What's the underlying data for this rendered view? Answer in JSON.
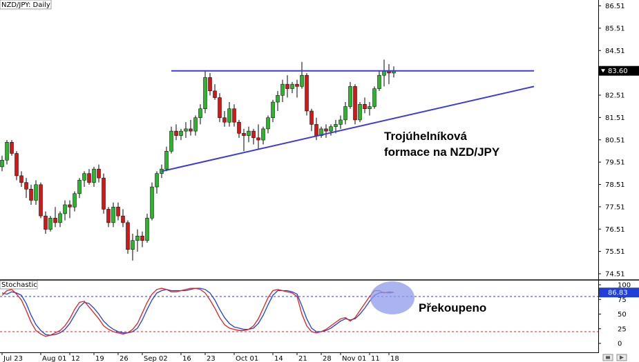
{
  "chart_data": [
    {
      "type": "candlestick",
      "title": "NZD/JPY: Daily",
      "ylim": [
        74.5,
        86.8
      ],
      "y_ticks": [
        "86.51",
        "85.51",
        "84.51",
        "83.51",
        "82.51",
        "81.51",
        "80.51",
        "79.51",
        "78.51",
        "77.51",
        "76.51",
        "75.51",
        "74.51"
      ],
      "current_price": "83.60",
      "x_ticks": [
        "Jul 23",
        "Aug 01",
        "12",
        "19",
        "26",
        "Sep 02",
        "16",
        "23",
        "Oct 01",
        "14",
        "21",
        "28",
        "Nov 01",
        "11",
        "18"
      ],
      "candles": [
        [
          79.3,
          79.8,
          79.1,
          79.6
        ],
        [
          79.6,
          80.5,
          79.4,
          80.4
        ],
        [
          80.4,
          80.5,
          79.8,
          79.9
        ],
        [
          79.9,
          80.0,
          78.7,
          78.9
        ],
        [
          78.9,
          79.1,
          78.4,
          78.6
        ],
        [
          78.6,
          78.8,
          77.9,
          78.3
        ],
        [
          78.3,
          78.5,
          77.6,
          77.8
        ],
        [
          77.8,
          78.7,
          77.6,
          78.5
        ],
        [
          78.5,
          78.6,
          77.0,
          77.1
        ],
        [
          77.1,
          77.3,
          76.3,
          76.5
        ],
        [
          76.5,
          77.1,
          76.4,
          77.0
        ],
        [
          77.0,
          77.5,
          76.6,
          76.8
        ],
        [
          76.8,
          77.3,
          76.6,
          77.2
        ],
        [
          77.2,
          77.8,
          76.9,
          77.6
        ],
        [
          77.6,
          77.8,
          77.0,
          77.5
        ],
        [
          77.5,
          78.2,
          77.3,
          78.1
        ],
        [
          78.1,
          78.8,
          77.9,
          78.7
        ],
        [
          78.7,
          79.1,
          78.4,
          79.0
        ],
        [
          79.0,
          79.2,
          78.5,
          78.6
        ],
        [
          78.6,
          79.3,
          78.4,
          79.2
        ],
        [
          79.2,
          79.4,
          78.6,
          78.8
        ],
        [
          78.8,
          79.0,
          77.2,
          77.4
        ],
        [
          77.4,
          77.5,
          76.6,
          76.8
        ],
        [
          76.8,
          77.7,
          76.6,
          77.5
        ],
        [
          77.5,
          77.7,
          76.9,
          77.1
        ],
        [
          77.1,
          77.4,
          76.6,
          76.8
        ],
        [
          76.8,
          76.9,
          75.4,
          75.6
        ],
        [
          75.6,
          76.3,
          75.1,
          76.0
        ],
        [
          76.0,
          76.5,
          75.5,
          76.2
        ],
        [
          76.2,
          76.4,
          75.7,
          76.0
        ],
        [
          76.0,
          77.2,
          75.9,
          77.0
        ],
        [
          77.0,
          78.6,
          76.9,
          78.4
        ],
        [
          78.4,
          79.1,
          78.1,
          79.0
        ],
        [
          79.0,
          79.4,
          78.8,
          79.2
        ],
        [
          79.2,
          80.2,
          79.1,
          80.0
        ],
        [
          80.0,
          81.1,
          79.9,
          80.9
        ],
        [
          80.9,
          81.2,
          80.5,
          80.7
        ],
        [
          80.7,
          81.0,
          80.5,
          80.9
        ],
        [
          80.9,
          81.3,
          80.6,
          81.0
        ],
        [
          81.0,
          81.4,
          80.7,
          80.9
        ],
        [
          80.9,
          81.6,
          80.7,
          81.5
        ],
        [
          81.5,
          82.1,
          81.2,
          81.9
        ],
        [
          81.9,
          83.6,
          81.7,
          83.3
        ],
        [
          83.3,
          83.5,
          82.5,
          82.7
        ],
        [
          82.7,
          83.0,
          82.3,
          82.4
        ],
        [
          82.4,
          82.6,
          81.3,
          81.5
        ],
        [
          81.5,
          81.8,
          81.1,
          81.3
        ],
        [
          81.3,
          82.2,
          81.1,
          81.9
        ],
        [
          81.9,
          82.1,
          81.1,
          81.3
        ],
        [
          81.3,
          81.4,
          80.6,
          80.8
        ],
        [
          80.8,
          81.0,
          80.0,
          80.7
        ],
        [
          80.7,
          81.1,
          80.4,
          80.9
        ],
        [
          80.9,
          81.0,
          80.3,
          80.6
        ],
        [
          80.6,
          81.2,
          80.1,
          80.5
        ],
        [
          80.5,
          81.1,
          80.3,
          81.0
        ],
        [
          81.0,
          81.6,
          80.8,
          81.5
        ],
        [
          81.5,
          82.3,
          81.3,
          82.2
        ],
        [
          82.2,
          82.7,
          81.8,
          82.5
        ],
        [
          82.5,
          83.2,
          82.2,
          83.0
        ],
        [
          83.0,
          83.4,
          82.4,
          82.8
        ],
        [
          82.8,
          83.1,
          82.6,
          83.0
        ],
        [
          83.0,
          83.2,
          82.4,
          82.9
        ],
        [
          82.9,
          84.0,
          82.8,
          83.4
        ],
        [
          83.4,
          83.5,
          81.6,
          81.8
        ],
        [
          81.8,
          81.9,
          80.9,
          81.2
        ],
        [
          81.2,
          81.5,
          80.5,
          80.7
        ],
        [
          80.7,
          81.1,
          80.6,
          81.0
        ],
        [
          81.0,
          81.2,
          80.6,
          80.9
        ],
        [
          80.9,
          81.2,
          80.7,
          81.1
        ],
        [
          81.1,
          81.4,
          80.8,
          81.2
        ],
        [
          81.2,
          81.6,
          81.0,
          81.4
        ],
        [
          81.4,
          82.2,
          81.2,
          82.0
        ],
        [
          82.0,
          83.1,
          81.9,
          82.9
        ],
        [
          82.9,
          83.0,
          81.2,
          81.4
        ],
        [
          81.4,
          82.2,
          81.3,
          82.1
        ],
        [
          82.1,
          82.4,
          81.7,
          81.9
        ],
        [
          81.9,
          82.2,
          81.6,
          82.0
        ],
        [
          82.0,
          82.9,
          81.9,
          82.8
        ],
        [
          82.8,
          83.6,
          82.7,
          83.4
        ],
        [
          83.4,
          84.1,
          82.9,
          83.6
        ],
        [
          83.6,
          83.9,
          83.0,
          83.5
        ],
        [
          83.5,
          83.8,
          83.3,
          83.6
        ]
      ],
      "resistance_line": {
        "from": [
          35,
          83.6
        ],
        "to": [
          110,
          83.6
        ]
      },
      "support_line": {
        "from": [
          33,
          79.1
        ],
        "to": [
          110,
          82.9
        ]
      },
      "annotation": [
        "Trojúhelníková",
        "formace na NZD/JPY"
      ]
    },
    {
      "type": "line",
      "title": "Stochastic",
      "ylim": [
        0,
        100
      ],
      "y_ticks": [
        "100",
        "75",
        "50",
        "25",
        "0"
      ],
      "current_value": "86.83",
      "levels": [
        80,
        20
      ],
      "series": [
        {
          "color": "#1f3fd8",
          "values": [
            86,
            84,
            88,
            86,
            82,
            68,
            48,
            32,
            22,
            15,
            14,
            15,
            18,
            24,
            34,
            48,
            62,
            70,
            68,
            60,
            50,
            38,
            30,
            24,
            20,
            18,
            18,
            20,
            26,
            40,
            58,
            74,
            86,
            90,
            92,
            90,
            90,
            90,
            90,
            92,
            94,
            94,
            92,
            86,
            74,
            58,
            44,
            34,
            28,
            26,
            24,
            24,
            26,
            34,
            48,
            66,
            82,
            90,
            90,
            90,
            88,
            84,
            64,
            42,
            26,
            20,
            20,
            22,
            26,
            32,
            38,
            42,
            40,
            42,
            50,
            60,
            72,
            82,
            86,
            87,
            86,
            87
          ]
        },
        {
          "color": "#e02020",
          "values": [
            82,
            90,
            92,
            84,
            74,
            56,
            36,
            22,
            16,
            12,
            14,
            18,
            22,
            30,
            42,
            58,
            70,
            72,
            62,
            52,
            42,
            30,
            24,
            20,
            18,
            16,
            18,
            24,
            34,
            52,
            70,
            84,
            92,
            94,
            92,
            88,
            88,
            90,
            92,
            94,
            94,
            92,
            86,
            74,
            60,
            44,
            32,
            26,
            24,
            22,
            22,
            24,
            30,
            42,
            60,
            78,
            90,
            92,
            90,
            88,
            86,
            80,
            50,
            30,
            20,
            18,
            20,
            24,
            30,
            36,
            42,
            44,
            38,
            44,
            56,
            68,
            80,
            90,
            90,
            86,
            88,
            87
          ]
        }
      ],
      "annotation": "Překoupeno"
    }
  ]
}
